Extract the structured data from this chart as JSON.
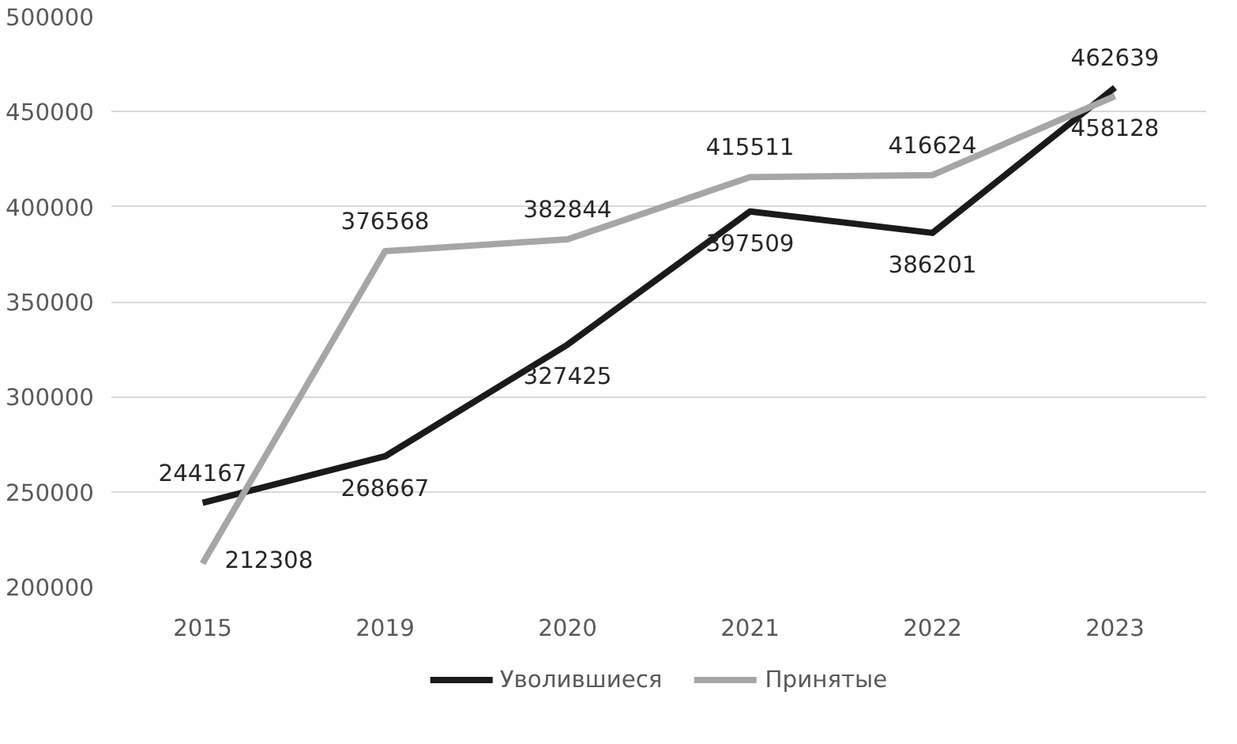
{
  "chart_data": {
    "type": "line",
    "categories": [
      "2015",
      "2019",
      "2020",
      "2021",
      "2022",
      "2023"
    ],
    "series": [
      {
        "name": "Уволившиеся",
        "color": "#1a1a1a",
        "values": [
          244167,
          268667,
          327425,
          397509,
          386201,
          462639
        ]
      },
      {
        "name": "Принятые",
        "color": "#a6a6a6",
        "values": [
          212308,
          376568,
          382844,
          415511,
          416624,
          458128
        ]
      }
    ],
    "ylim": [
      200000,
      500000
    ],
    "yticks": [
      200000,
      250000,
      300000,
      350000,
      400000,
      450000,
      500000
    ],
    "grid": "y",
    "legend": "bottom",
    "data_labels": true,
    "line_style": "solid",
    "marker": "none"
  }
}
